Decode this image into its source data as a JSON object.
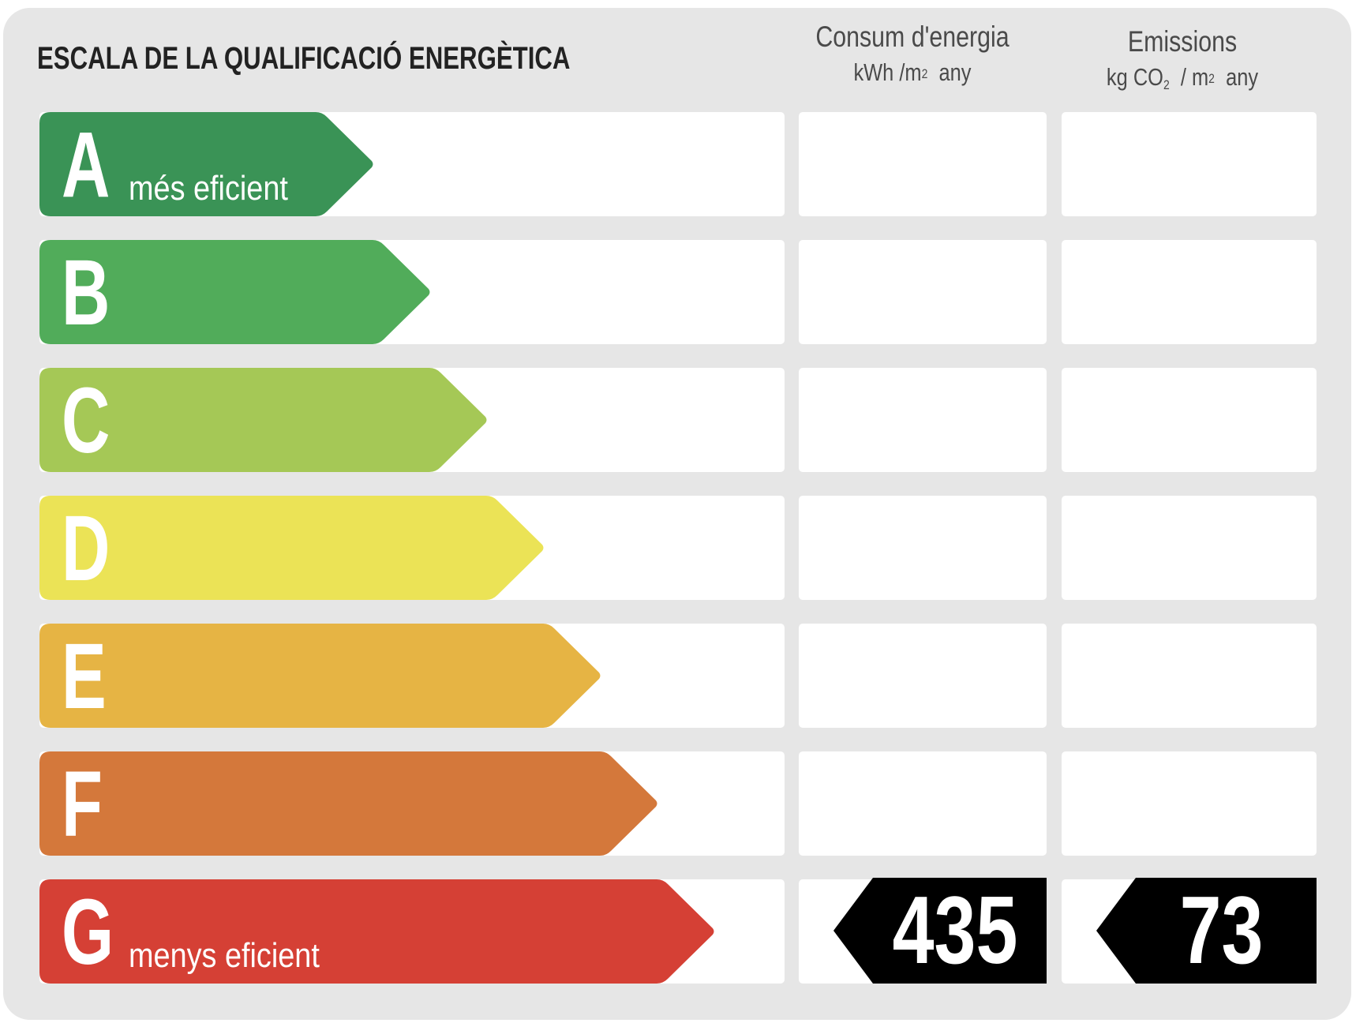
{
  "title": "ESCALA DE LA QUALIFICACIÓ ENERGÈTICA",
  "columns": {
    "energy": {
      "title": "Consum d'energia",
      "unit_prefix": "kWh /m",
      "unit_sup": "2",
      "unit_suffix": "any"
    },
    "emissions": {
      "title": "Emissions",
      "unit_prefix": "kg CO",
      "unit_sub": "2",
      "unit_mid": " / m",
      "unit_sup": "2",
      "unit_suffix": "any"
    }
  },
  "classes": [
    {
      "letter": "A",
      "label": "més eficient",
      "color": "#3a9356"
    },
    {
      "letter": "B",
      "label": "",
      "color": "#51ac5a"
    },
    {
      "letter": "C",
      "label": "",
      "color": "#a5c856"
    },
    {
      "letter": "D",
      "label": "",
      "color": "#ebe356"
    },
    {
      "letter": "E",
      "label": "",
      "color": "#e6b444"
    },
    {
      "letter": "F",
      "label": "",
      "color": "#d4783b"
    },
    {
      "letter": "G",
      "label": "menys eficient",
      "color": "#d54035"
    }
  ],
  "rating": {
    "class": "G",
    "energy_value": "435",
    "emissions_value": "73",
    "badge_color": "#000000"
  }
}
